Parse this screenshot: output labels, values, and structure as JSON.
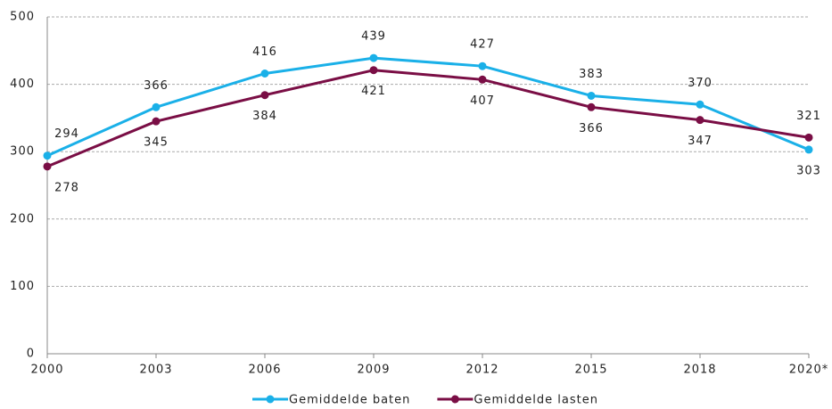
{
  "chart_data": {
    "type": "line",
    "categories": [
      "2000",
      "2003",
      "2006",
      "2009",
      "2012",
      "2015",
      "2018",
      "2020*"
    ],
    "series": [
      {
        "name": "Gemiddelde baten",
        "color": "#1ab0e8",
        "values": [
          294,
          366,
          416,
          439,
          427,
          383,
          370,
          303
        ]
      },
      {
        "name": "Gemiddelde lasten",
        "color": "#7a0e45",
        "values": [
          278,
          345,
          384,
          421,
          407,
          366,
          347,
          321
        ]
      }
    ],
    "ylim": [
      0,
      500
    ],
    "yticks": [
      0,
      100,
      200,
      300,
      400,
      500
    ],
    "grid": true,
    "legend": "bottom"
  }
}
